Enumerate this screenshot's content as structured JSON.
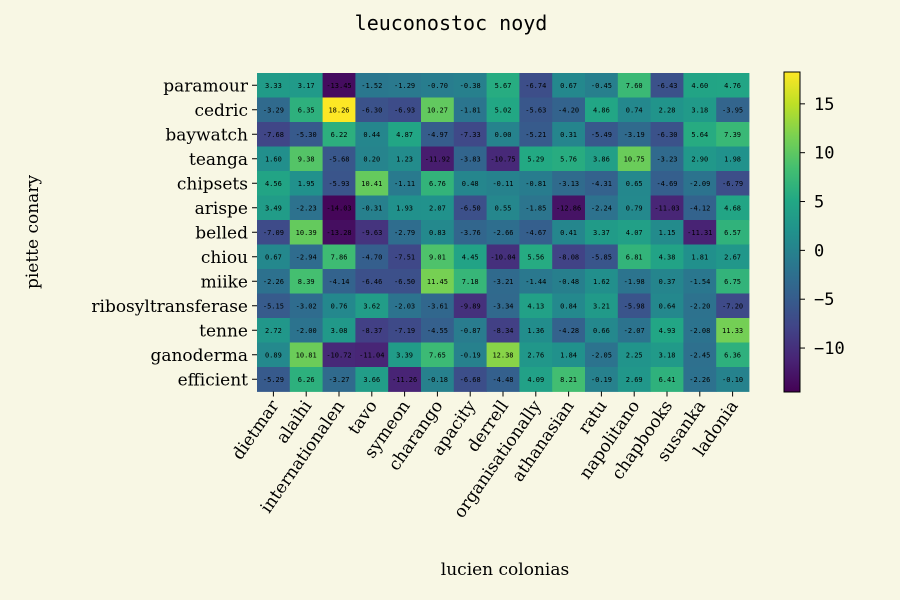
{
  "chart_data": {
    "type": "heatmap",
    "title": "leuconostoc noyd",
    "xlabel": "lucien colonias",
    "ylabel": "piette conary",
    "colormap": "viridis",
    "x_categories": [
      "dietmar",
      "alaihi",
      "internationalen",
      "tavo",
      "symeon",
      "charango",
      "apacity",
      "derrell",
      "organisationally",
      "athanasian",
      "ratu",
      "napolitano",
      "chapbooks",
      "susanka",
      "ladonia"
    ],
    "y_categories": [
      "paramour",
      "cedric",
      "baywatch",
      "teanga",
      "chipsets",
      "arispe",
      "belled",
      "chiou",
      "miike",
      "ribosyltransferase",
      "tenne",
      "ganoderma",
      "efficient"
    ],
    "values": [
      [
        3.33,
        3.17,
        -13.45,
        -1.52,
        -1.29,
        -0.7,
        -0.38,
        5.67,
        -6.74,
        0.67,
        -0.45,
        7.6,
        -6.43,
        4.6,
        4.76
      ],
      [
        -3.29,
        6.35,
        18.26,
        -6.3,
        -6.93,
        10.27,
        -1.81,
        5.02,
        -5.63,
        -4.2,
        4.86,
        0.74,
        2.28,
        3.18,
        -3.95
      ],
      [
        -7.68,
        -5.3,
        6.22,
        0.44,
        4.87,
        -4.97,
        -7.33,
        0.0,
        -5.21,
        0.31,
        -5.49,
        -3.19,
        -6.3,
        5.64,
        7.39
      ],
      [
        1.6,
        9.38,
        -5.68,
        0.2,
        1.23,
        -11.92,
        -3.83,
        -10.75,
        5.29,
        5.76,
        3.86,
        10.75,
        -3.23,
        2.9,
        1.98
      ],
      [
        4.56,
        1.95,
        -5.93,
        10.41,
        -1.11,
        6.76,
        0.48,
        -0.11,
        -0.81,
        -3.13,
        -4.31,
        0.65,
        -4.69,
        -2.09,
        -6.79
      ],
      [
        3.49,
        -2.23,
        -14.03,
        -0.31,
        1.93,
        2.07,
        -6.5,
        0.55,
        -1.85,
        -12.86,
        -2.24,
        0.79,
        -11.03,
        -4.12,
        4.68
      ],
      [
        -7.09,
        10.39,
        -13.28,
        -9.63,
        -2.79,
        0.83,
        -3.76,
        -2.66,
        -4.67,
        0.41,
        3.37,
        4.07,
        1.15,
        -11.31,
        6.57
      ],
      [
        0.67,
        -2.94,
        7.86,
        -4.7,
        -7.51,
        9.01,
        4.45,
        -10.04,
        5.56,
        -8.08,
        -5.85,
        6.81,
        4.38,
        1.81,
        2.67
      ],
      [
        -2.26,
        8.39,
        -4.14,
        -6.46,
        -6.5,
        11.45,
        7.18,
        -3.21,
        -1.44,
        -0.48,
        1.62,
        -1.98,
        0.37,
        -1.54,
        6.75
      ],
      [
        -5.15,
        -3.02,
        0.76,
        3.62,
        -2.03,
        -3.61,
        -9.89,
        -3.34,
        4.13,
        0.84,
        3.21,
        -5.98,
        0.64,
        -2.2,
        -7.2
      ],
      [
        2.72,
        -2.0,
        3.08,
        -8.37,
        -7.19,
        -4.55,
        -0.87,
        -8.34,
        1.36,
        -4.28,
        0.66,
        -2.07,
        4.93,
        -2.08,
        11.33
      ],
      [
        0.89,
        10.81,
        -10.72,
        -11.04,
        3.39,
        7.65,
        -0.19,
        12.38,
        2.76,
        1.84,
        -2.05,
        2.25,
        3.18,
        -2.45,
        6.36
      ],
      [
        -5.29,
        6.26,
        -3.27,
        3.66,
        -11.26,
        -0.18,
        -6.68,
        -4.48,
        4.09,
        8.21,
        -0.19,
        2.69,
        6.41,
        -2.26,
        -0.1
      ]
    ],
    "vmin": -14.5,
    "vmax": 18.26,
    "colorbar_ticks": [
      15,
      10,
      5,
      0,
      -5,
      -10
    ],
    "colorbar_tick_labels": [
      "15",
      "10",
      "5",
      "0",
      "−5",
      "−10"
    ]
  }
}
